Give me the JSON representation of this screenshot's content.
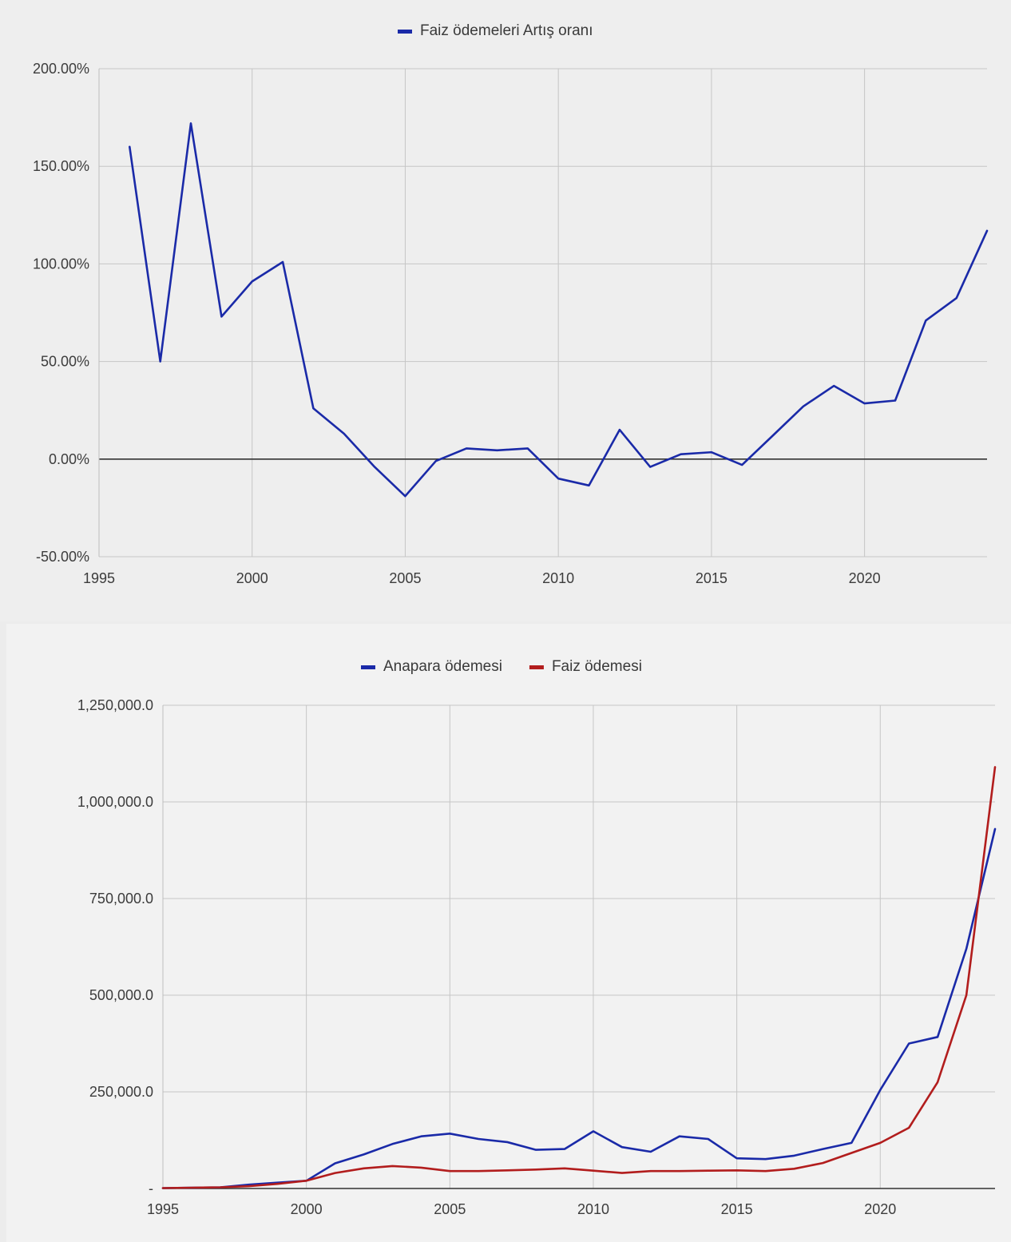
{
  "chart_data": [
    {
      "type": "line",
      "title": "",
      "xlabel": "",
      "ylabel": "",
      "xlim": [
        1995,
        2024
      ],
      "ylim": [
        -50,
        200
      ],
      "grid": true,
      "legend_position": "top",
      "y_ticks": [
        -50,
        0,
        50,
        100,
        150,
        200
      ],
      "y_tick_labels": [
        "-50.00%",
        "0.00%",
        "50.00%",
        "100.00%",
        "150.00%",
        "200.00%"
      ],
      "x_ticks": [
        1995,
        2000,
        2005,
        2010,
        2015,
        2020
      ],
      "x_tick_labels": [
        "1995",
        "2000",
        "2005",
        "2010",
        "2015",
        "2020"
      ],
      "x": [
        1996,
        1997,
        1998,
        1999,
        2000,
        2001,
        2002,
        2003,
        2004,
        2005,
        2006,
        2007,
        2008,
        2009,
        2010,
        2011,
        2012,
        2013,
        2014,
        2015,
        2016,
        2017,
        2018,
        2019,
        2020,
        2021,
        2022,
        2023,
        2024
      ],
      "series": [
        {
          "name": "Faiz ödemeleri Artış oranı",
          "color": "#1a2aa8",
          "values": [
            160,
            50,
            172,
            73,
            91,
            101,
            26,
            13,
            -4,
            -19,
            -1,
            5.5,
            4.5,
            5.5,
            -10,
            -13.5,
            15,
            -4,
            2.5,
            3.5,
            -3,
            12,
            27,
            37.5,
            28.5,
            30,
            71,
            82.5,
            117
          ]
        }
      ]
    },
    {
      "type": "line",
      "title": "",
      "xlabel": "",
      "ylabel": "",
      "xlim": [
        1995,
        2024
      ],
      "ylim": [
        0,
        1250000
      ],
      "grid": true,
      "legend_position": "top",
      "y_ticks": [
        0,
        250000,
        500000,
        750000,
        1000000,
        1250000
      ],
      "y_tick_labels": [
        "-",
        "250,000.0",
        "500,000.0",
        "750,000.0",
        "1,000,000.0",
        "1,250,000.0"
      ],
      "x_ticks": [
        1995,
        2000,
        2005,
        2010,
        2015,
        2020
      ],
      "x_tick_labels": [
        "1995",
        "2000",
        "2005",
        "2010",
        "2015",
        "2020"
      ],
      "x": [
        1995,
        1996,
        1997,
        1998,
        1999,
        2000,
        2001,
        2002,
        2003,
        2004,
        2005,
        2006,
        2007,
        2008,
        2009,
        2010,
        2011,
        2012,
        2013,
        2014,
        2015,
        2016,
        2017,
        2018,
        2019,
        2020,
        2021,
        2022,
        2023,
        2024
      ],
      "series": [
        {
          "name": "Anapara ödemesi",
          "color": "#1a2aa8",
          "values": [
            1000,
            2000,
            3000,
            10000,
            15000,
            20000,
            65000,
            88000,
            115000,
            135000,
            142000,
            128000,
            120000,
            100000,
            102000,
            148000,
            107000,
            95000,
            135000,
            128000,
            78000,
            76000,
            85000,
            102000,
            118000,
            255000,
            375000,
            392000,
            620000,
            930000
          ]
        },
        {
          "name": "Faiz ödemesi",
          "color": "#b21d1d",
          "values": [
            1000,
            2000,
            3000,
            6000,
            12000,
            20000,
            40000,
            52000,
            58000,
            54000,
            45000,
            45000,
            47000,
            49000,
            52000,
            46000,
            40000,
            45000,
            45000,
            46000,
            47000,
            45000,
            51000,
            66000,
            92000,
            118000,
            157000,
            275000,
            500000,
            1090000
          ]
        }
      ]
    }
  ]
}
